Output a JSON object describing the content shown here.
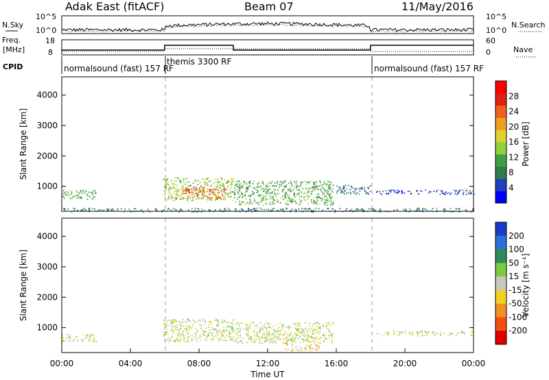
{
  "header": {
    "title": "Adak East (fitACF)",
    "beam": "Beam 07",
    "date": "11/May/2016"
  },
  "summary": {
    "nsky_label": "N.Sky",
    "nsearch_label": "N.Search",
    "freq_label_1": "Freq.",
    "freq_label_2": "[MHz]",
    "nave_label": "Nave",
    "cpid_label": "CPID",
    "noise_ticks_left": [
      "10^5",
      "10^0"
    ],
    "noise_ticks_right": [
      "10^5",
      "10^0"
    ],
    "freq_ticks": [
      "18",
      "8"
    ],
    "nave_ticks": [
      "60",
      "0"
    ]
  },
  "cpid": [
    {
      "label": "normalsound (fast) 157 RF",
      "start": 0,
      "end": 6
    },
    {
      "label": "themis 3300 RF",
      "start": 6,
      "end": 18
    },
    {
      "label": "normalsound (fast) 157 RF",
      "start": 18,
      "end": 24
    }
  ],
  "colorbars": {
    "power": {
      "title": "Power [dB]",
      "ticks": [
        "4",
        "8",
        "12",
        "16",
        "20",
        "24",
        "28"
      ],
      "colors": [
        "#0000ff",
        "#1f3fbf",
        "#2e7d4a",
        "#3fa03f",
        "#8fd040",
        "#e0d030",
        "#f0a020",
        "#f06020",
        "#e02010",
        "#ff0000"
      ]
    },
    "velocity": {
      "title": "Velocity [m s⁻¹]",
      "ticks": [
        "200",
        "100",
        "50",
        "15",
        "-15",
        "-50",
        "-100",
        "-200"
      ],
      "colors": [
        "#1a3cc8",
        "#2d6fd8",
        "#2e8b57",
        "#7ac943",
        "#c8c8c0",
        "#f0d020",
        "#f09020",
        "#f05010",
        "#e00000"
      ]
    }
  },
  "chart_data": [
    {
      "type": "heatmap",
      "name": "power",
      "ylabel": "Slant Range [km]",
      "y_ticks": [
        "1000",
        "2000",
        "3000",
        "4000"
      ],
      "xlim": [
        0,
        24
      ],
      "ylim": [
        180,
        4600
      ],
      "dashed_lines_hours": [
        6,
        18
      ],
      "regions": [
        {
          "t0": 0.0,
          "t1": 2.0,
          "r0": 600,
          "r1": 900,
          "level": 3
        },
        {
          "t0": 5.9,
          "t1": 10.0,
          "r0": 550,
          "r1": 1300,
          "level": 4
        },
        {
          "t0": 7.0,
          "t1": 9.5,
          "r0": 600,
          "r1": 1000,
          "level": 7
        },
        {
          "t0": 10.0,
          "t1": 15.8,
          "r0": 400,
          "r1": 1200,
          "level": 3
        },
        {
          "t0": 16.0,
          "t1": 18.0,
          "r0": 750,
          "r1": 1050,
          "level": 2
        },
        {
          "t0": 18.3,
          "t1": 24.0,
          "r0": 750,
          "r1": 900,
          "level": 1
        },
        {
          "t0": 0.0,
          "t1": 24.0,
          "r0": 180,
          "r1": 300,
          "level": 2
        }
      ]
    },
    {
      "type": "heatmap",
      "name": "velocity",
      "ylabel": "Slant Range [km]",
      "xlabel": "Time UT",
      "x_ticks": [
        "00:00",
        "04:00",
        "08:00",
        "12:00",
        "16:00",
        "20:00",
        "00:00"
      ],
      "y_ticks": [
        "1000",
        "2000",
        "3000",
        "4000"
      ],
      "xlim": [
        0,
        24
      ],
      "ylim": [
        180,
        4600
      ],
      "dashed_lines_hours": [
        6,
        18
      ],
      "regions": [
        {
          "t0": 0.0,
          "t1": 2.0,
          "r0": 550,
          "r1": 800,
          "level": 4
        },
        {
          "t0": 5.9,
          "t1": 10.0,
          "r0": 550,
          "r1": 1300,
          "level": 4
        },
        {
          "t0": 10.0,
          "t1": 15.8,
          "r0": 500,
          "r1": 1200,
          "level": 4
        },
        {
          "t0": 13.0,
          "t1": 15.0,
          "r0": 250,
          "r1": 500,
          "level": 5
        },
        {
          "t0": 18.3,
          "t1": 24.0,
          "r0": 750,
          "r1": 900,
          "level": 4
        }
      ]
    }
  ]
}
